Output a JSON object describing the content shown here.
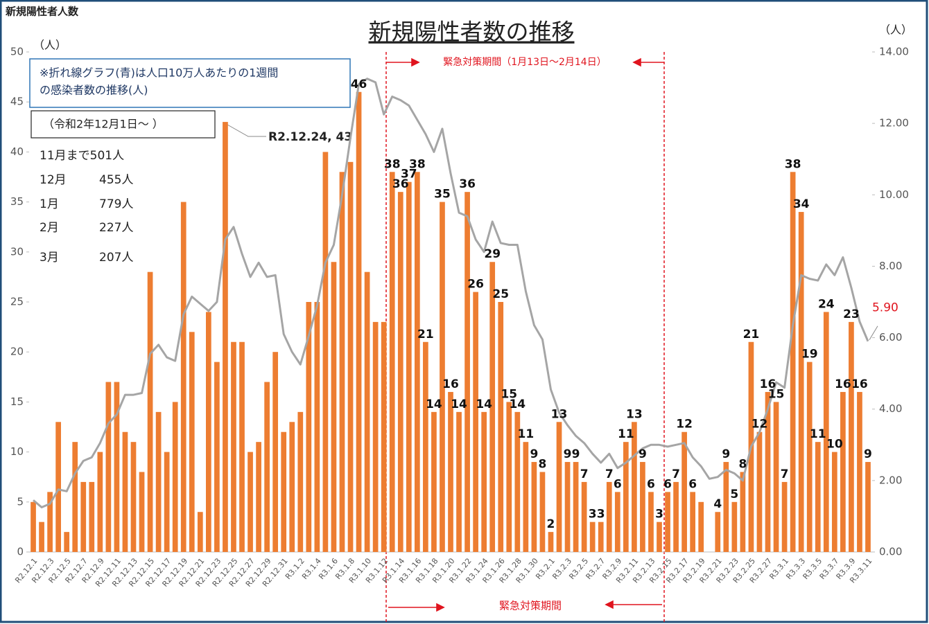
{
  "chart_data": {
    "type": "bar",
    "page_label": "新規陽性者人数",
    "title": "新規陽性者数の推移",
    "y_unit": "（人）",
    "y2_unit": "（人）",
    "note": [
      "※折れ線グラフ(青)は人口10万人あたりの1週間",
      "の感染者数の推移(人)"
    ],
    "period_box": "（令和2年12月1日～ ）",
    "monthly": [
      [
        "11月まで501人",
        null
      ],
      [
        "12月",
        "455人"
      ],
      [
        "1月",
        "779人"
      ],
      [
        "2月",
        "227人"
      ],
      [
        "3月",
        "207人"
      ]
    ],
    "period_top": "緊急対策期間（1月13日～2月14日）",
    "period_bottom": "緊急対策期間",
    "annotation": "R2.12.24, 43",
    "categories": [
      "R2.12.1",
      null,
      "R2.12.3",
      null,
      "R2.12.5",
      null,
      "R2.12.7",
      null,
      "R2.12.9",
      null,
      "R2.12.11",
      null,
      "R2.12.13",
      null,
      "R2.12.15",
      null,
      "R2.12.17",
      null,
      "R2.12.19",
      null,
      "R2.12.21",
      null,
      "R2.12.23",
      null,
      "R2.12.25",
      null,
      "R2.12.27",
      null,
      "R2.12.29",
      null,
      "R2.12.31",
      null,
      "R3.1.2",
      null,
      "R3.1.4",
      null,
      "R3.1.6",
      null,
      "R3.1.8",
      null,
      "R3.1.10",
      null,
      "R3.1.12",
      null,
      "R3.1.14",
      null,
      "R3.1.16",
      null,
      "R3.1.18",
      null,
      "R3.1.20",
      null,
      "R3.1.22",
      null,
      "R3.1.24",
      null,
      "R3.1.26",
      null,
      "R3.1.28",
      null,
      "R3.1.30",
      null,
      "R3.2.1",
      null,
      "R3.2.3",
      null,
      "R3.2.5",
      null,
      "R3.2.7",
      null,
      "R3.2.9",
      null,
      "R3.2.11",
      null,
      "R3.2.13",
      null,
      "R3.2.15",
      null,
      "R3.2.17",
      null,
      "R3.2.19",
      null,
      "R3.2.21",
      null,
      "R3.2.23",
      null,
      "R3.2.25",
      null,
      "R3.2.27",
      null,
      "R3.3.1",
      null,
      "R3.3.3",
      null,
      "R3.3.5",
      null,
      "R3.3.7",
      null,
      "R3.3.9",
      null,
      "R3.3.11"
    ],
    "series": [
      {
        "type": "bar",
        "color": "#ed7d31",
        "values": [
          5,
          3,
          6,
          13,
          2,
          11,
          7,
          7,
          10,
          17,
          17,
          12,
          11,
          8,
          28,
          14,
          10,
          15,
          35,
          22,
          4,
          24,
          19,
          43,
          21,
          21,
          10,
          11,
          17,
          20,
          12,
          13,
          14,
          25,
          25,
          40,
          29,
          38,
          39,
          46,
          28,
          23,
          23,
          38,
          36,
          37,
          38,
          21,
          14,
          35,
          16,
          14,
          36,
          26,
          14,
          29,
          25,
          15,
          14,
          11,
          9,
          8,
          2,
          13,
          9,
          9,
          7,
          3,
          3,
          7,
          6,
          11,
          13,
          9,
          6,
          3,
          6,
          7,
          12,
          6,
          5,
          0,
          4,
          9,
          5,
          8,
          21,
          12,
          16,
          15,
          7,
          38,
          34,
          19,
          11,
          24,
          10,
          16,
          23,
          16,
          9
        ],
        "value_labels": [
          null,
          null,
          null,
          null,
          null,
          null,
          null,
          null,
          null,
          null,
          null,
          null,
          null,
          null,
          null,
          null,
          null,
          null,
          null,
          null,
          null,
          null,
          null,
          null,
          null,
          null,
          null,
          null,
          null,
          null,
          null,
          null,
          null,
          null,
          null,
          null,
          null,
          null,
          null,
          "46",
          null,
          null,
          null,
          "38",
          "36",
          "37",
          "38",
          "21",
          "14",
          "35",
          "16",
          "14",
          "36",
          "26",
          "14",
          "29",
          "25",
          "15",
          "14",
          "11",
          "9",
          "8",
          "2",
          "13",
          "9",
          "9",
          "7",
          "3",
          "3",
          "7",
          "6",
          "11",
          "13",
          "9",
          "6",
          "3",
          "6",
          "7",
          "12",
          "6",
          null,
          null,
          "4",
          "9",
          "5",
          "8",
          "21",
          "12",
          "16",
          "15",
          "7",
          "38",
          "34",
          "19",
          "11",
          "24",
          "10",
          "16",
          "23",
          "16",
          "9"
        ]
      },
      {
        "type": "line",
        "axis": "y2",
        "color": "#a5a5a5",
        "values": [
          1.45,
          1.25,
          1.35,
          1.75,
          1.7,
          2.2,
          2.55,
          2.65,
          3.05,
          3.6,
          3.85,
          4.4,
          4.4,
          4.45,
          5.55,
          5.8,
          5.45,
          5.35,
          6.65,
          7.15,
          6.95,
          6.75,
          7.0,
          8.75,
          9.1,
          8.35,
          7.7,
          8.1,
          7.7,
          7.75,
          6.1,
          5.6,
          5.25,
          6.05,
          6.9,
          8.1,
          8.6,
          10.0,
          11.6,
          13.1,
          13.25,
          13.15,
          12.25,
          12.75,
          12.65,
          12.5,
          12.1,
          11.7,
          11.2,
          11.85,
          10.6,
          9.5,
          9.4,
          8.75,
          8.4,
          9.25,
          8.65,
          8.6,
          8.6,
          7.3,
          6.35,
          5.95,
          4.55,
          3.9,
          3.55,
          3.25,
          3.05,
          2.75,
          2.5,
          2.75,
          2.35,
          2.5,
          2.7,
          2.9,
          3.0,
          3.0,
          2.95,
          3.0,
          3.05,
          2.65,
          2.4,
          2.05,
          2.1,
          2.3,
          2.2,
          2.0,
          2.95,
          3.35,
          4.0,
          4.75,
          4.6,
          6.35,
          7.75,
          7.65,
          7.6,
          8.05,
          7.75,
          8.25,
          7.4,
          6.45,
          5.9
        ],
        "value_labels": [
          null,
          null,
          null,
          null,
          null,
          null,
          null,
          null,
          null,
          null,
          null,
          null,
          null,
          null,
          null,
          null,
          null,
          null,
          null,
          null,
          null,
          null,
          null,
          null,
          null,
          null,
          null,
          null,
          null,
          null,
          null,
          null,
          null,
          null,
          null,
          null,
          null,
          null,
          null,
          null,
          null,
          null,
          null,
          null,
          null,
          null,
          null,
          null,
          null,
          null,
          null,
          null,
          null,
          null,
          null,
          null,
          null,
          null,
          null,
          null,
          null,
          null,
          null,
          null,
          null,
          null,
          null,
          null,
          null,
          null,
          null,
          null,
          null,
          null,
          null,
          null,
          null,
          null,
          null,
          null,
          null,
          null,
          null,
          null,
          null,
          null,
          null,
          null,
          null,
          null,
          null,
          null,
          null,
          null,
          null,
          null,
          null,
          null,
          null,
          null,
          "5.90"
        ]
      }
    ],
    "ylim": [
      0,
      50
    ],
    "yticks": [
      0,
      5,
      10,
      15,
      20,
      25,
      30,
      35,
      40,
      45,
      50
    ],
    "y2lim": [
      0,
      14
    ],
    "y2ticks": [
      {
        "value": 0,
        "label": "0.00"
      },
      {
        "value": 2,
        "label": "2.00"
      },
      {
        "value": 4,
        "label": "4.00"
      },
      {
        "value": 6,
        "label": "6.00"
      },
      {
        "value": 8,
        "label": "8.00"
      },
      {
        "value": 10,
        "label": "10.00"
      },
      {
        "value": 12,
        "label": "12.00"
      },
      {
        "value": 14,
        "label": "14.00"
      }
    ]
  }
}
